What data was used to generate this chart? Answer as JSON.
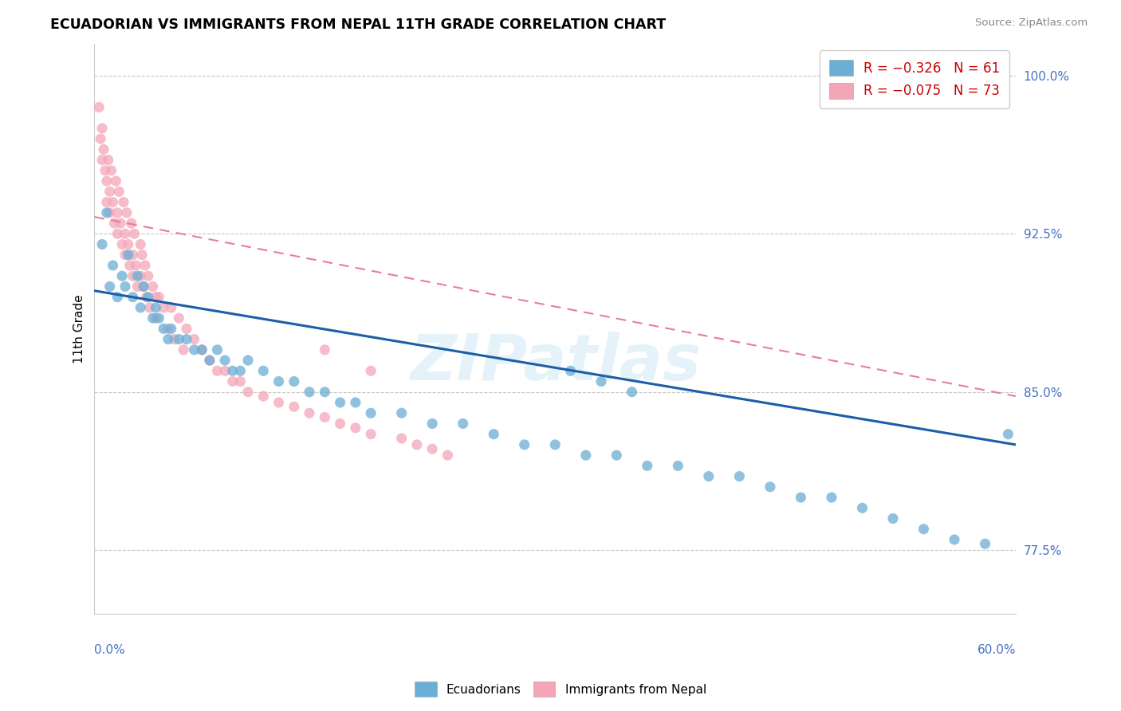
{
  "title": "ECUADORIAN VS IMMIGRANTS FROM NEPAL 11TH GRADE CORRELATION CHART",
  "source": "Source: ZipAtlas.com",
  "ylabel": "11th Grade",
  "xmin": 0.0,
  "xmax": 0.6,
  "ymin": 0.745,
  "ymax": 1.015,
  "yticks": [
    0.775,
    0.85,
    0.925,
    1.0
  ],
  "ytick_labels": [
    "77.5%",
    "85.0%",
    "92.5%",
    "100.0%"
  ],
  "legend_R1": "R = −0.326",
  "legend_N1": "N = 61",
  "legend_R2": "R = −0.075",
  "legend_N2": "N = 73",
  "blue_color": "#6baed6",
  "pink_color": "#f4a6b8",
  "blue_line_color": "#1a5fa8",
  "pink_line_color": "#e87ca0",
  "watermark": "ZIPatlas",
  "blue_scatter_x": [
    0.005,
    0.008,
    0.01,
    0.012,
    0.015,
    0.018,
    0.02,
    0.022,
    0.025,
    0.028,
    0.03,
    0.032,
    0.035,
    0.038,
    0.04,
    0.042,
    0.045,
    0.048,
    0.05,
    0.055,
    0.06,
    0.065,
    0.07,
    0.075,
    0.08,
    0.085,
    0.09,
    0.095,
    0.1,
    0.11,
    0.12,
    0.13,
    0.14,
    0.15,
    0.16,
    0.17,
    0.18,
    0.2,
    0.22,
    0.24,
    0.26,
    0.28,
    0.3,
    0.32,
    0.34,
    0.36,
    0.38,
    0.4,
    0.42,
    0.44,
    0.46,
    0.48,
    0.5,
    0.52,
    0.54,
    0.56,
    0.58,
    0.595,
    0.31,
    0.33,
    0.35
  ],
  "blue_scatter_y": [
    0.92,
    0.935,
    0.9,
    0.91,
    0.895,
    0.905,
    0.9,
    0.915,
    0.895,
    0.905,
    0.89,
    0.9,
    0.895,
    0.885,
    0.89,
    0.885,
    0.88,
    0.875,
    0.88,
    0.875,
    0.875,
    0.87,
    0.87,
    0.865,
    0.87,
    0.865,
    0.86,
    0.86,
    0.865,
    0.86,
    0.855,
    0.855,
    0.85,
    0.85,
    0.845,
    0.845,
    0.84,
    0.84,
    0.835,
    0.835,
    0.83,
    0.825,
    0.825,
    0.82,
    0.82,
    0.815,
    0.815,
    0.81,
    0.81,
    0.805,
    0.8,
    0.8,
    0.795,
    0.79,
    0.785,
    0.78,
    0.778,
    0.83,
    0.86,
    0.855,
    0.85
  ],
  "pink_scatter_x": [
    0.003,
    0.004,
    0.005,
    0.005,
    0.006,
    0.007,
    0.008,
    0.008,
    0.009,
    0.01,
    0.01,
    0.011,
    0.012,
    0.013,
    0.014,
    0.015,
    0.015,
    0.016,
    0.017,
    0.018,
    0.019,
    0.02,
    0.02,
    0.021,
    0.022,
    0.023,
    0.024,
    0.025,
    0.025,
    0.026,
    0.027,
    0.028,
    0.03,
    0.03,
    0.031,
    0.032,
    0.033,
    0.034,
    0.035,
    0.036,
    0.038,
    0.04,
    0.04,
    0.042,
    0.045,
    0.048,
    0.05,
    0.052,
    0.055,
    0.058,
    0.06,
    0.065,
    0.07,
    0.075,
    0.08,
    0.085,
    0.09,
    0.095,
    0.1,
    0.11,
    0.12,
    0.13,
    0.14,
    0.15,
    0.16,
    0.17,
    0.18,
    0.2,
    0.21,
    0.22,
    0.23,
    0.15,
    0.18
  ],
  "pink_scatter_y": [
    0.985,
    0.97,
    0.975,
    0.96,
    0.965,
    0.955,
    0.95,
    0.94,
    0.96,
    0.945,
    0.935,
    0.955,
    0.94,
    0.93,
    0.95,
    0.935,
    0.925,
    0.945,
    0.93,
    0.92,
    0.94,
    0.925,
    0.915,
    0.935,
    0.92,
    0.91,
    0.93,
    0.915,
    0.905,
    0.925,
    0.91,
    0.9,
    0.92,
    0.905,
    0.915,
    0.9,
    0.91,
    0.895,
    0.905,
    0.89,
    0.9,
    0.895,
    0.885,
    0.895,
    0.89,
    0.88,
    0.89,
    0.875,
    0.885,
    0.87,
    0.88,
    0.875,
    0.87,
    0.865,
    0.86,
    0.86,
    0.855,
    0.855,
    0.85,
    0.848,
    0.845,
    0.843,
    0.84,
    0.838,
    0.835,
    0.833,
    0.83,
    0.828,
    0.825,
    0.823,
    0.82,
    0.87,
    0.86
  ],
  "blue_line_x0": 0.0,
  "blue_line_x1": 0.6,
  "blue_line_y0": 0.898,
  "blue_line_y1": 0.825,
  "pink_line_x0": 0.0,
  "pink_line_x1": 0.6,
  "pink_line_y0": 0.933,
  "pink_line_y1": 0.848
}
